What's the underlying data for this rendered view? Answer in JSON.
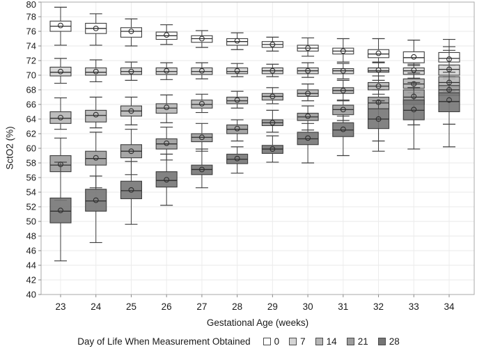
{
  "chart": {
    "title": "",
    "ylabel": "SctO2 (%)",
    "xlabel": "Gestational Age (weeks)",
    "legend_title": "Day of Life When Measurement Obtained"
  },
  "chart_data": {
    "type": "boxplot",
    "title": "",
    "xlabel": "Gestational Age (weeks)",
    "ylabel": "SctO2 (%)",
    "ylim": [
      40,
      80
    ],
    "ytick_step": 2,
    "grid": true,
    "legend_title": "Day of Life When Measurement Obtained",
    "legend_position": "bottom",
    "categories": [
      23,
      24,
      25,
      26,
      27,
      28,
      29,
      30,
      31,
      32,
      33,
      34
    ],
    "box_stats_order": [
      "whisker_low",
      "q1",
      "median",
      "mean",
      "q3",
      "whisker_high"
    ],
    "stroke_color": "#3d3d3d",
    "series": [
      {
        "name": "0",
        "fill": "#ffffff",
        "boxes": [
          [
            74.1,
            76.0,
            76.7,
            76.8,
            77.4,
            79.3
          ],
          [
            74.1,
            75.7,
            76.4,
            76.4,
            77.1,
            78.4
          ],
          [
            74.0,
            75.2,
            76.0,
            76.0,
            76.5,
            77.7
          ],
          [
            74.2,
            74.9,
            75.4,
            75.5,
            75.9,
            76.9
          ],
          [
            73.8,
            74.5,
            75.0,
            75.0,
            75.4,
            76.1
          ],
          [
            73.5,
            74.1,
            74.6,
            74.7,
            75.0,
            75.8
          ],
          [
            73.3,
            73.8,
            74.2,
            74.2,
            74.6,
            75.2
          ],
          [
            72.6,
            73.3,
            73.7,
            73.7,
            74.1,
            75.1
          ],
          [
            71.8,
            72.9,
            73.3,
            73.3,
            73.7,
            75.0
          ],
          [
            71.8,
            72.4,
            72.9,
            73.0,
            73.5,
            75.0
          ],
          [
            71.3,
            71.7,
            72.4,
            72.5,
            73.2,
            74.8
          ],
          [
            71.3,
            71.8,
            72.3,
            72.2,
            73.1,
            74.9
          ]
        ]
      },
      {
        "name": "7",
        "fill": "#d4d4d4",
        "boxes": [
          [
            68.9,
            69.9,
            70.4,
            70.5,
            71.1,
            72.3
          ],
          [
            69.1,
            70.0,
            70.4,
            70.5,
            71.0,
            72.1
          ],
          [
            69.3,
            70.1,
            70.5,
            70.5,
            71.0,
            71.8
          ],
          [
            69.4,
            70.1,
            70.5,
            70.6,
            71.0,
            71.7
          ],
          [
            69.5,
            70.1,
            70.5,
            70.6,
            71.0,
            71.7
          ],
          [
            69.8,
            70.2,
            70.5,
            70.6,
            71.0,
            71.6
          ],
          [
            69.8,
            70.2,
            70.6,
            70.6,
            71.0,
            71.5
          ],
          [
            69.7,
            70.2,
            70.6,
            70.6,
            71.0,
            71.7
          ],
          [
            69.5,
            70.2,
            70.6,
            70.6,
            70.9,
            71.6
          ],
          [
            69.3,
            70.4,
            70.6,
            70.7,
            71.0,
            71.7
          ],
          [
            69.6,
            70.1,
            70.6,
            70.7,
            71.0,
            71.5
          ],
          [
            69.5,
            70.0,
            70.8,
            70.8,
            71.4,
            73.9
          ]
        ]
      },
      {
        "name": "14",
        "fill": "#b6b6b6",
        "boxes": [
          [
            62.6,
            63.4,
            64.1,
            64.2,
            65.0,
            66.9
          ],
          [
            62.8,
            63.6,
            64.5,
            64.6,
            65.2,
            67.0
          ],
          [
            63.2,
            64.4,
            65.1,
            65.1,
            65.8,
            67.0
          ],
          [
            63.5,
            64.8,
            65.5,
            65.6,
            66.1,
            67.3
          ],
          [
            64.9,
            65.5,
            66.0,
            66.1,
            66.6,
            67.4
          ],
          [
            65.5,
            66.1,
            66.5,
            66.6,
            67.0,
            67.8
          ],
          [
            66.1,
            66.6,
            67.1,
            67.1,
            67.5,
            68.3
          ],
          [
            66.5,
            67.1,
            67.5,
            67.5,
            68.0,
            68.8
          ],
          [
            66.5,
            67.5,
            67.9,
            67.9,
            68.3,
            69.3
          ],
          [
            67.4,
            68.0,
            68.5,
            68.5,
            69.0,
            69.9
          ],
          [
            67.6,
            68.2,
            68.8,
            68.8,
            69.5,
            70.3
          ],
          [
            67.8,
            68.4,
            69.0,
            69.0,
            69.8,
            73.4
          ]
        ]
      },
      {
        "name": "21",
        "fill": "#9c9c9c",
        "boxes": [
          [
            52.9,
            56.8,
            57.7,
            57.8,
            59.0,
            61.4
          ],
          [
            54.6,
            57.7,
            58.6,
            58.7,
            59.6,
            62.2
          ],
          [
            56.4,
            58.7,
            59.6,
            59.6,
            60.5,
            62.6
          ],
          [
            58.4,
            59.9,
            60.6,
            60.7,
            61.3,
            62.9
          ],
          [
            59.6,
            60.9,
            61.5,
            61.5,
            62.0,
            63.4
          ],
          [
            61.0,
            62.0,
            62.6,
            62.7,
            63.2,
            63.9
          ],
          [
            62.2,
            63.1,
            63.5,
            63.5,
            63.9,
            65.2
          ],
          [
            62.5,
            63.8,
            64.3,
            64.4,
            64.8,
            65.8
          ],
          [
            63.8,
            64.6,
            65.3,
            65.3,
            65.9,
            66.6
          ],
          [
            61.0,
            65.4,
            66.2,
            66.3,
            67.0,
            68.0
          ],
          [
            63.2,
            66.0,
            67.0,
            67.1,
            68.0,
            69.0
          ],
          [
            63.3,
            67.2,
            68.0,
            68.0,
            68.6,
            70.4
          ]
        ]
      },
      {
        "name": "28",
        "fill": "#757575",
        "boxes": [
          [
            44.6,
            49.8,
            51.4,
            51.5,
            53.2,
            58.1
          ],
          [
            47.1,
            51.4,
            52.8,
            52.9,
            54.4,
            56.2
          ],
          [
            49.6,
            53.1,
            54.2,
            54.3,
            55.5,
            58.2
          ],
          [
            52.2,
            54.7,
            55.6,
            55.7,
            56.8,
            59.2
          ],
          [
            54.6,
            56.4,
            57.1,
            57.1,
            57.7,
            59.9
          ],
          [
            56.6,
            57.9,
            58.5,
            58.6,
            59.2,
            60.2
          ],
          [
            58.1,
            59.3,
            59.9,
            59.9,
            60.4,
            61.7
          ],
          [
            58.0,
            60.5,
            61.3,
            61.4,
            62.2,
            63.4
          ],
          [
            59.0,
            61.6,
            62.5,
            62.6,
            63.5,
            64.4
          ],
          [
            59.6,
            62.7,
            64.0,
            64.0,
            65.4,
            66.5
          ],
          [
            59.9,
            63.9,
            65.2,
            65.3,
            66.6,
            68.3
          ],
          [
            60.2,
            65.0,
            66.4,
            66.6,
            67.6,
            69.8
          ]
        ]
      }
    ]
  }
}
